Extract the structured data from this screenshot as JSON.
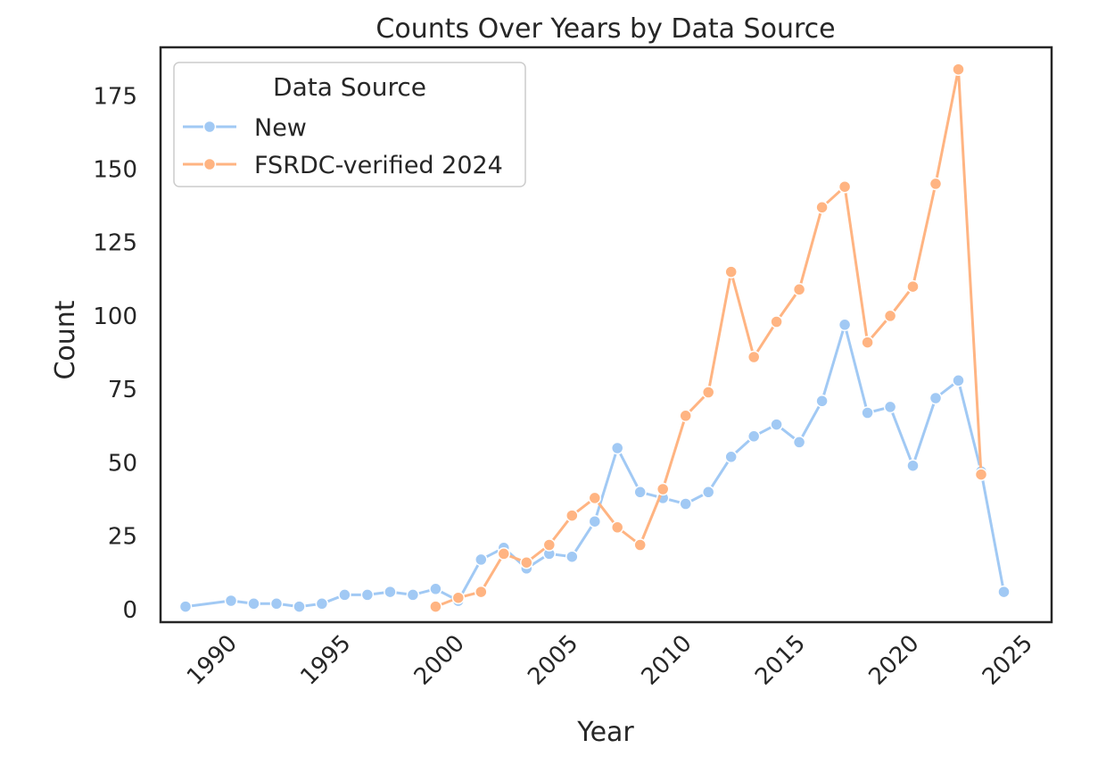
{
  "chart_data": {
    "type": "line",
    "title": "Counts Over Years by Data Source",
    "xlabel": "Year",
    "ylabel": "Count",
    "xlim": [
      1986.9,
      2026.1
    ],
    "ylim": [
      -4.3,
      191.5
    ],
    "xticks": [
      1990,
      1995,
      2000,
      2005,
      2010,
      2015,
      2020,
      2025
    ],
    "yticks": [
      0,
      25,
      50,
      75,
      100,
      125,
      150,
      175
    ],
    "grid": false,
    "legend": {
      "title": "Data Source",
      "placement": "top-left"
    },
    "series": [
      {
        "name": "New",
        "color": "#a1c9f4",
        "points": [
          [
            1988,
            1
          ],
          [
            1990,
            3
          ],
          [
            1991,
            2
          ],
          [
            1992,
            2
          ],
          [
            1993,
            1
          ],
          [
            1994,
            2
          ],
          [
            1995,
            5
          ],
          [
            1996,
            5
          ],
          [
            1997,
            6
          ],
          [
            1998,
            5
          ],
          [
            1999,
            7
          ],
          [
            2000,
            3
          ],
          [
            2001,
            17
          ],
          [
            2002,
            21
          ],
          [
            2003,
            14
          ],
          [
            2004,
            19
          ],
          [
            2005,
            18
          ],
          [
            2006,
            30
          ],
          [
            2007,
            55
          ],
          [
            2008,
            40
          ],
          [
            2009,
            38
          ],
          [
            2010,
            36
          ],
          [
            2011,
            40
          ],
          [
            2012,
            52
          ],
          [
            2013,
            59
          ],
          [
            2014,
            63
          ],
          [
            2015,
            57
          ],
          [
            2016,
            71
          ],
          [
            2017,
            97
          ],
          [
            2018,
            67
          ],
          [
            2019,
            69
          ],
          [
            2020,
            49
          ],
          [
            2021,
            72
          ],
          [
            2022,
            78
          ],
          [
            2023,
            47
          ],
          [
            2024,
            6
          ]
        ]
      },
      {
        "name": "FSRDC-verified 2024",
        "color": "#ffb482",
        "points": [
          [
            1999,
            1
          ],
          [
            2000,
            4
          ],
          [
            2001,
            6
          ],
          [
            2002,
            19
          ],
          [
            2003,
            16
          ],
          [
            2004,
            22
          ],
          [
            2005,
            32
          ],
          [
            2006,
            38
          ],
          [
            2007,
            28
          ],
          [
            2008,
            22
          ],
          [
            2009,
            41
          ],
          [
            2010,
            66
          ],
          [
            2011,
            74
          ],
          [
            2012,
            115
          ],
          [
            2013,
            86
          ],
          [
            2014,
            98
          ],
          [
            2015,
            109
          ],
          [
            2016,
            137
          ],
          [
            2017,
            144
          ],
          [
            2018,
            91
          ],
          [
            2019,
            100
          ],
          [
            2020,
            110
          ],
          [
            2021,
            145
          ],
          [
            2022,
            184
          ],
          [
            2023,
            46
          ]
        ]
      }
    ]
  }
}
